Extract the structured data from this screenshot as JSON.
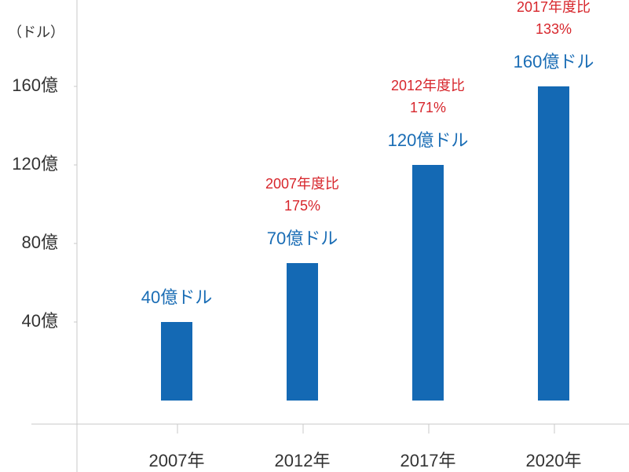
{
  "chart_data": {
    "type": "bar",
    "y_axis_label": "（ドル）",
    "categories": [
      "2007年",
      "2012年",
      "2017年",
      "2020年"
    ],
    "values": [
      40,
      70,
      120,
      160
    ],
    "value_labels": [
      "40億ドル",
      "70億ドル",
      "120億ドル",
      "160億ドル"
    ],
    "growth_labels": [
      null,
      [
        "2007年度比",
        "175%"
      ],
      [
        "2012年度比",
        "171%"
      ],
      [
        "2017年度比",
        "133%"
      ]
    ],
    "color": "#1469b4",
    "value_label_color": "#1a6db5",
    "growth_label_color": "#d7262c",
    "ylim": [
      -12,
      204
    ],
    "yticks": [
      {
        "value": 40,
        "label": "40億"
      },
      {
        "value": 80,
        "label": "80億"
      },
      {
        "value": 120,
        "label": "120億"
      },
      {
        "value": 160,
        "label": "160億"
      }
    ],
    "grid": false
  }
}
